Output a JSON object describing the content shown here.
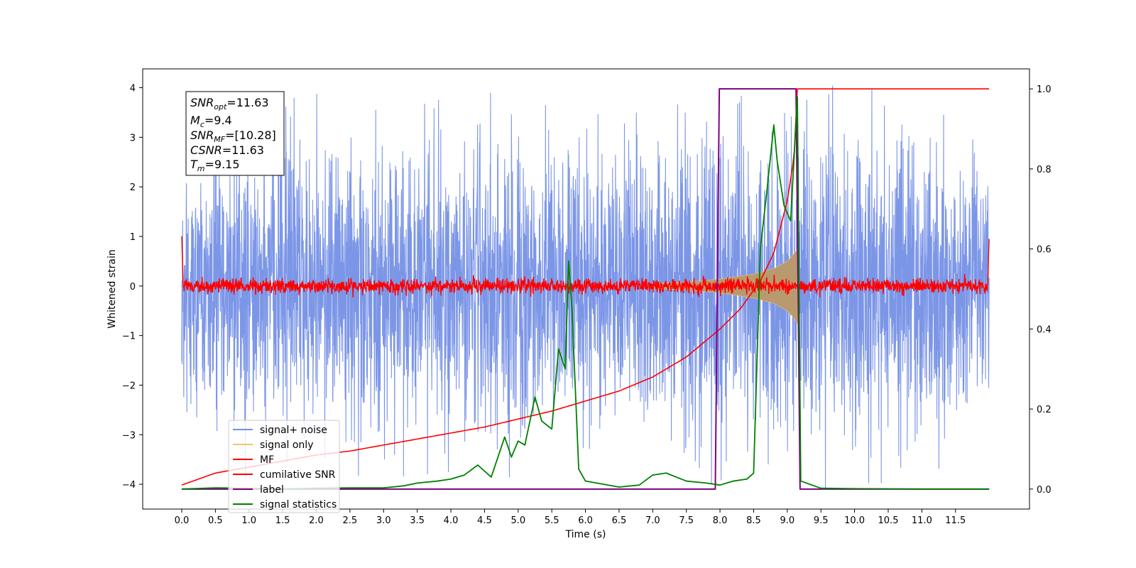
{
  "chart_data": {
    "type": "line",
    "xlabel": "Time (s)",
    "ylabel": "Whitened strain",
    "xlim": [
      -0.58,
      12.6
    ],
    "ylim": [
      -4.5,
      4.38
    ],
    "ylim_right": [
      -0.05,
      1.05
    ],
    "xticks": [
      "0.0",
      "0.5",
      "1.0",
      "1.5",
      "2.0",
      "2.5",
      "3.0",
      "3.5",
      "4.0",
      "4.5",
      "5.0",
      "5.5",
      "6.0",
      "6.5",
      "7.0",
      "7.5",
      "8.0",
      "8.5",
      "9.0",
      "9.5",
      "10.0",
      "10.5",
      "11.0",
      "11.5"
    ],
    "yticks": [
      "4",
      "3",
      "2",
      "1",
      "0",
      "−1",
      "−2",
      "−3",
      "−4"
    ],
    "yticks_right": [
      "1.0",
      "0.8",
      "0.6",
      "0.4",
      "0.2",
      "0.0"
    ],
    "legend_position": "lower-left",
    "grid": false,
    "annotation": {
      "snr_opt": "11.63",
      "mc": "9.4",
      "snr_mf": "[10.28]",
      "csnr": "11.63",
      "tm": "9.15"
    },
    "series": [
      {
        "name": "signal+ noise",
        "axis": "left",
        "color": "#7590e6",
        "description_values": "noisy whitened strain, roughly uniform amplitude between about -3.5 and 3.5 over 0 to 12 s",
        "envelope_upper": [
          [
            0.0,
            2.6
          ],
          [
            1.0,
            3.2
          ],
          [
            2.0,
            3.1
          ],
          [
            3.0,
            3.0
          ],
          [
            4.0,
            3.0
          ],
          [
            5.0,
            3.2
          ],
          [
            6.0,
            3.0
          ],
          [
            7.0,
            3.1
          ],
          [
            8.0,
            3.4
          ],
          [
            9.0,
            3.3
          ],
          [
            10.0,
            3.2
          ],
          [
            11.0,
            3.1
          ],
          [
            12.0,
            2.8
          ]
        ],
        "envelope_lower": [
          [
            0.0,
            -2.4
          ],
          [
            1.0,
            -3.2
          ],
          [
            2.0,
            -3.0
          ],
          [
            3.0,
            -3.1
          ],
          [
            4.0,
            -3.0
          ],
          [
            5.0,
            -3.1
          ],
          [
            6.0,
            -3.0
          ],
          [
            7.0,
            -3.1
          ],
          [
            8.0,
            -3.2
          ],
          [
            9.0,
            -3.2
          ],
          [
            10.0,
            -3.3
          ],
          [
            11.0,
            -3.0
          ],
          [
            12.0,
            -2.8
          ]
        ]
      },
      {
        "name": "signal only",
        "axis": "left",
        "color": "#f5c26b",
        "chirp_envelope": [
          [
            7.0,
            0.05
          ],
          [
            7.5,
            0.08
          ],
          [
            8.0,
            0.14
          ],
          [
            8.5,
            0.24
          ],
          [
            8.8,
            0.35
          ],
          [
            9.0,
            0.5
          ],
          [
            9.1,
            0.65
          ],
          [
            9.15,
            0.75
          ]
        ]
      },
      {
        "name": "MF",
        "axis": "left",
        "color": "#ff0000",
        "description_values": "matched-filter output oscillating around 0 with amplitude about 0.15; starts at 1.0 at t=0 and ends at 0.95 at t=12"
      },
      {
        "name": "cumilative SNR",
        "axis": "right",
        "color": "#ff0000",
        "x": [
          0.0,
          0.5,
          1.0,
          1.5,
          2.0,
          2.5,
          3.0,
          3.5,
          4.0,
          4.5,
          5.0,
          5.5,
          6.0,
          6.5,
          7.0,
          7.5,
          8.0,
          8.3,
          8.6,
          8.8,
          9.0,
          9.1,
          9.15,
          9.2,
          10.0,
          11.0,
          12.0
        ],
        "values": [
          0.01,
          0.04,
          0.055,
          0.07,
          0.085,
          0.095,
          0.11,
          0.125,
          0.14,
          0.155,
          0.175,
          0.195,
          0.22,
          0.245,
          0.28,
          0.33,
          0.4,
          0.45,
          0.52,
          0.59,
          0.72,
          0.83,
          1.0,
          1.0,
          1.0,
          1.0,
          1.0
        ]
      },
      {
        "name": "label",
        "axis": "right",
        "color": "#800080",
        "x": [
          0.0,
          7.93,
          7.99,
          9.13,
          9.19,
          12.0
        ],
        "values": [
          0.0,
          0.0,
          1.0,
          1.0,
          0.0,
          0.0
        ]
      },
      {
        "name": "signal statistics",
        "axis": "right",
        "color": "#008000",
        "x": [
          0.0,
          0.5,
          1.0,
          1.5,
          2.0,
          2.5,
          3.0,
          3.3,
          3.5,
          3.8,
          4.0,
          4.2,
          4.4,
          4.6,
          4.8,
          4.9,
          5.0,
          5.1,
          5.25,
          5.35,
          5.5,
          5.6,
          5.7,
          5.75,
          5.8,
          5.9,
          6.0,
          6.5,
          6.8,
          7.0,
          7.2,
          7.5,
          7.8,
          8.0,
          8.2,
          8.4,
          8.5,
          8.6,
          8.7,
          8.8,
          8.85,
          8.95,
          9.05,
          9.15,
          9.2,
          9.5,
          10.0,
          11.0,
          12.0
        ],
        "values": [
          0.0,
          0.003,
          0.002,
          0.0,
          0.002,
          0.003,
          0.003,
          0.008,
          0.015,
          0.02,
          0.025,
          0.035,
          0.06,
          0.03,
          0.13,
          0.08,
          0.12,
          0.11,
          0.23,
          0.17,
          0.15,
          0.35,
          0.3,
          0.57,
          0.45,
          0.05,
          0.02,
          0.005,
          0.01,
          0.035,
          0.04,
          0.02,
          0.015,
          0.01,
          0.02,
          0.025,
          0.04,
          0.6,
          0.75,
          0.91,
          0.82,
          0.71,
          0.67,
          0.98,
          0.02,
          0.002,
          0.001,
          0.0,
          0.0
        ]
      }
    ]
  }
}
